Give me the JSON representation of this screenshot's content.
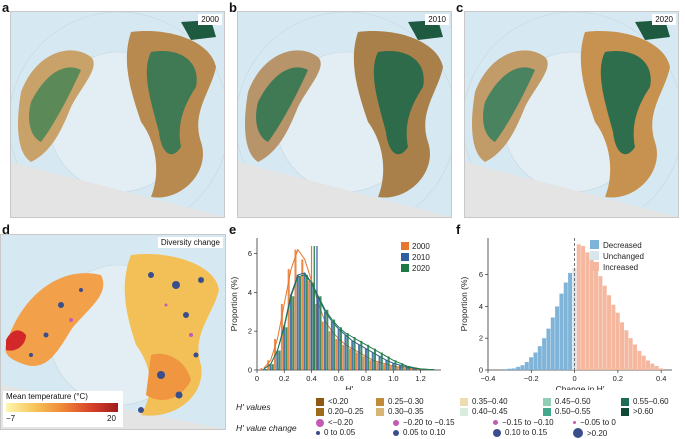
{
  "panels": {
    "a": {
      "label": "a",
      "year": "2000"
    },
    "b": {
      "label": "b",
      "year": "2010"
    },
    "c": {
      "label": "c",
      "year": "2020"
    },
    "d": {
      "label": "d",
      "tag": "Diversity change",
      "colorbar_title": "Mean temperature (°C)",
      "colorbar_min": "−7",
      "colorbar_max": "20"
    },
    "e": {
      "label": "e"
    },
    "f": {
      "label": "f"
    }
  },
  "chart_data": [
    {
      "type": "bar",
      "title": "",
      "xlabel": "H′",
      "ylabel": "Proportion (%)",
      "xlim": [
        0,
        1.35
      ],
      "ylim": [
        0,
        6.8
      ],
      "xticks": [
        "0",
        "0.2",
        "0.4",
        "0.6",
        "0.8",
        "1.0",
        "1.2"
      ],
      "yticks": [
        "0",
        "2",
        "4",
        "6"
      ],
      "x": [
        0.05,
        0.1,
        0.15,
        0.2,
        0.25,
        0.3,
        0.35,
        0.4,
        0.45,
        0.5,
        0.55,
        0.6,
        0.65,
        0.7,
        0.75,
        0.8,
        0.85,
        0.9,
        0.95,
        1.0,
        1.05,
        1.1,
        1.15,
        1.2,
        1.25,
        1.3
      ],
      "series": [
        {
          "name": "2000",
          "color": "#e8762c",
          "values": [
            0.1,
            0.5,
            1.6,
            3.4,
            5.2,
            6.2,
            5.7,
            4.6,
            3.4,
            2.5,
            2.0,
            1.6,
            1.3,
            1.1,
            0.9,
            0.7,
            0.5,
            0.4,
            0.3,
            0.2,
            0.15,
            0.1,
            0.06,
            0.03,
            0.02,
            0.01
          ],
          "mean": 0.4
        },
        {
          "name": "2010",
          "color": "#2f5f9e",
          "values": [
            0.05,
            0.3,
            1.0,
            2.3,
            3.9,
            4.9,
            5.0,
            4.5,
            3.7,
            3.0,
            2.5,
            2.1,
            1.8,
            1.5,
            1.3,
            1.1,
            0.9,
            0.7,
            0.5,
            0.35,
            0.25,
            0.15,
            0.1,
            0.05,
            0.03,
            0.01
          ],
          "mean": 0.44
        },
        {
          "name": "2020",
          "color": "#1e7a45",
          "values": [
            0.05,
            0.3,
            1.0,
            2.2,
            3.8,
            4.8,
            4.9,
            4.5,
            3.8,
            3.1,
            2.6,
            2.2,
            1.9,
            1.7,
            1.5,
            1.3,
            1.1,
            0.9,
            0.7,
            0.5,
            0.35,
            0.2,
            0.12,
            0.06,
            0.03,
            0.01
          ],
          "mean": 0.42
        }
      ]
    },
    {
      "type": "bar",
      "title": "",
      "xlabel": "Change in H′",
      "ylabel": "Proportion (%)",
      "xlim": [
        -0.4,
        0.45
      ],
      "ylim": [
        0,
        8.3
      ],
      "xticks": [
        "−0.4",
        "−0.2",
        "0",
        "0.2",
        "0.4"
      ],
      "yticks": [
        "0",
        "2",
        "4",
        "6"
      ],
      "x": [
        -0.32,
        -0.3,
        -0.28,
        -0.26,
        -0.24,
        -0.22,
        -0.2,
        -0.18,
        -0.16,
        -0.14,
        -0.12,
        -0.1,
        -0.08,
        -0.06,
        -0.04,
        -0.02,
        0.0,
        0.02,
        0.04,
        0.06,
        0.08,
        0.1,
        0.12,
        0.14,
        0.16,
        0.18,
        0.2,
        0.22,
        0.24,
        0.26,
        0.28,
        0.3,
        0.32,
        0.34,
        0.36,
        0.38,
        0.4
      ],
      "categories_of_bars": [
        "Decreased",
        "Decreased",
        "Decreased",
        "Decreased",
        "Decreased",
        "Decreased",
        "Decreased",
        "Decreased",
        "Decreased",
        "Decreased",
        "Decreased",
        "Decreased",
        "Decreased",
        "Decreased",
        "Decreased",
        "Decreased",
        "Unchanged",
        "Increased",
        "Increased",
        "Increased",
        "Increased",
        "Increased",
        "Increased",
        "Increased",
        "Increased",
        "Increased",
        "Increased",
        "Increased",
        "Increased",
        "Increased",
        "Increased",
        "Increased",
        "Increased",
        "Increased",
        "Increased",
        "Increased",
        "Increased"
      ],
      "values": [
        0.05,
        0.08,
        0.1,
        0.2,
        0.3,
        0.5,
        0.8,
        1.1,
        1.5,
        2.0,
        2.6,
        3.3,
        4.0,
        4.8,
        5.5,
        6.1,
        6.4,
        7.9,
        7.8,
        7.4,
        7.0,
        6.5,
        5.9,
        5.3,
        4.7,
        4.1,
        3.6,
        3.0,
        2.5,
        2.0,
        1.6,
        1.2,
        0.9,
        0.6,
        0.4,
        0.25,
        0.1
      ],
      "legend": [
        {
          "name": "Decreased",
          "color": "#7fb3d8"
        },
        {
          "name": "Unchanged",
          "color": "#d9e6ee"
        },
        {
          "name": "Increased",
          "color": "#f5b79d"
        }
      ]
    }
  ],
  "legend": {
    "h_values_title": "H′ values",
    "h_values": [
      {
        "label": "<0.20",
        "color": "#8c5a12"
      },
      {
        "label": "0.20–0.25",
        "color": "#a06a1c"
      },
      {
        "label": "0.25–0.30",
        "color": "#c28b3a"
      },
      {
        "label": "0.30–0.35",
        "color": "#d7b574"
      },
      {
        "label": "0.35–0.40",
        "color": "#ecdcb0"
      },
      {
        "label": "0.40–0.45",
        "color": "#d9eddc"
      },
      {
        "label": "0.45–0.50",
        "color": "#8fcfb6"
      },
      {
        "label": "0.50–0.55",
        "color": "#45a78b"
      },
      {
        "label": "0.55–0.60",
        "color": "#1b6e55"
      },
      {
        "label": ">0.60",
        "color": "#0e4a36"
      }
    ],
    "h_change_title": "H′ value change",
    "h_change": [
      {
        "label": "<−0.20",
        "color": "#c25bb3",
        "size": 8
      },
      {
        "label": "0 to 0.05",
        "color": "#3a4e8c",
        "size": 4
      },
      {
        "label": "−0.20 to −0.15",
        "color": "#c25bb3",
        "size": 6
      },
      {
        "label": "0.05 to 0.10",
        "color": "#3a4e8c",
        "size": 6
      },
      {
        "label": "−0.15 to −0.10",
        "color": "#c25bb3",
        "size": 5
      },
      {
        "label": "0.10 to 0.15",
        "color": "#3a4e8c",
        "size": 8
      },
      {
        "label": "−0.05 to 0",
        "color": "#c25bb3",
        "size": 3
      },
      {
        "label": ">0.20",
        "color": "#3a4e8c",
        "size": 10
      }
    ]
  }
}
